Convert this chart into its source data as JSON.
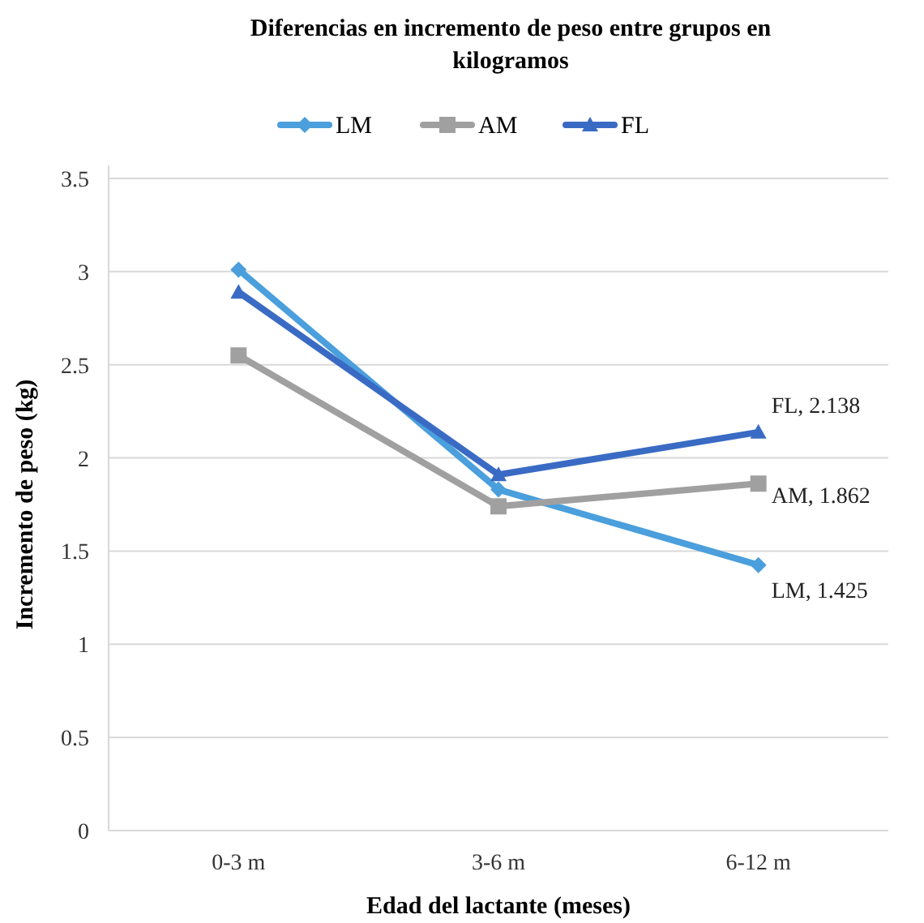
{
  "chart_data": {
    "type": "line",
    "title": "Diferencias en incremento de peso entre grupos en kilogramos",
    "xlabel": "Edad del lactante (meses)",
    "ylabel": "Incremento de peso (kg)",
    "categories": [
      "0-3 m",
      "3-6 m",
      "6-12 m"
    ],
    "series": [
      {
        "name": "LM",
        "color": "#4a9fdc",
        "marker": "diamond",
        "values": [
          3.01,
          1.83,
          1.425
        ],
        "value_labels": [
          null,
          null,
          "LM, 1.425"
        ]
      },
      {
        "name": "AM",
        "color": "#a0a0a0",
        "marker": "square",
        "values": [
          2.55,
          1.74,
          1.862
        ],
        "value_labels": [
          null,
          null,
          "AM, 1.862"
        ]
      },
      {
        "name": "FL",
        "color": "#3a6bc4",
        "marker": "triangle",
        "values": [
          2.89,
          1.91,
          2.138
        ],
        "value_labels": [
          null,
          null,
          "FL, 2.138"
        ]
      }
    ],
    "ylim": [
      0,
      3.5
    ],
    "yticks": [
      0,
      0.5,
      1,
      1.5,
      2,
      2.5,
      3,
      3.5
    ],
    "grid": "y",
    "legend": "top"
  }
}
